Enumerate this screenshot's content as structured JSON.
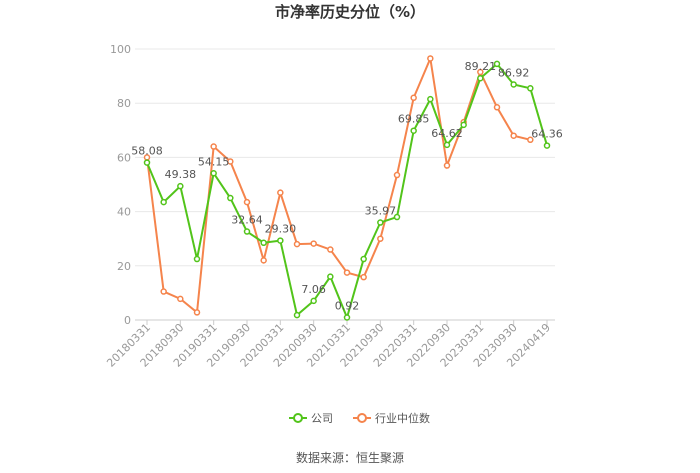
{
  "chart_data": {
    "type": "line",
    "title": "市净率历史分位（%）",
    "source": "数据来源：恒生聚源",
    "ylim": [
      0,
      100
    ],
    "yticks": [
      0,
      20,
      40,
      60,
      80,
      100
    ],
    "x": [
      "20180331",
      "20180630",
      "20180930",
      "20181231",
      "20190331",
      "20190630",
      "20190930",
      "20191231",
      "20200331",
      "20200630",
      "20200930",
      "20201231",
      "20210331",
      "20210630",
      "20210930",
      "20211231",
      "20220331",
      "20220630",
      "20220930",
      "20221231",
      "20230331",
      "20230630",
      "20230930",
      "20231231",
      "20240419"
    ],
    "xtick_labels": [
      "20180331",
      "20180930",
      "20190331",
      "20190930",
      "20200331",
      "20200930",
      "20210331",
      "20210930",
      "20220331",
      "20220930",
      "20230331",
      "20230930",
      "20240419"
    ],
    "grid": true,
    "legend_position": "bottom",
    "series": [
      {
        "name": "公司",
        "color": "#52c41a",
        "values": [
          58.08,
          43.5,
          49.38,
          22.5,
          54.15,
          45.0,
          32.64,
          28.5,
          29.3,
          1.8,
          7.06,
          16.0,
          0.92,
          22.5,
          35.97,
          38.0,
          69.85,
          81.5,
          64.62,
          72.0,
          89.21,
          94.5,
          86.92,
          85.5,
          64.36
        ],
        "labels": {
          "0": "58.08",
          "2": "49.38",
          "4": "54.15",
          "6": "32.64",
          "8": "29.30",
          "10": "7.06",
          "12": "0.92",
          "14": "35.97",
          "16": "69.85",
          "18": "64.62",
          "20": "89.21",
          "22": "86.92",
          "24": "64.36"
        }
      },
      {
        "name": "行业中位数",
        "color": "#f5844c",
        "values": [
          60.0,
          10.5,
          7.8,
          2.8,
          64.0,
          58.5,
          43.5,
          22.0,
          47.0,
          28.0,
          28.2,
          26.0,
          17.5,
          15.8,
          30.0,
          53.5,
          82.0,
          96.5,
          57.0,
          73.0,
          91.5,
          78.5,
          68.0,
          66.5,
          null
        ]
      }
    ]
  }
}
